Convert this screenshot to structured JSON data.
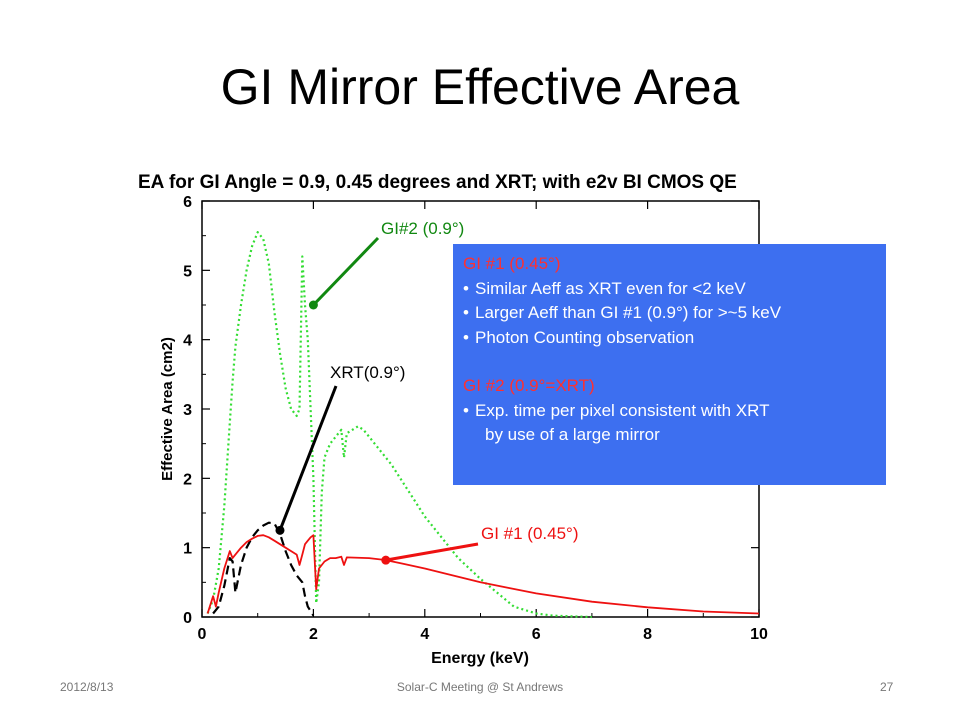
{
  "slide": {
    "title": "GI Mirror Effective Area",
    "footer_date": "2012/8/13",
    "footer_center": "Solar-C Meeting @ St Andrews",
    "page_number": "27"
  },
  "callouts": {
    "gi2": "GI#2 (0.9°)",
    "xrt": "XRT(0.9°)",
    "gi1": "GI #1 (0.45°)"
  },
  "infobox": {
    "heading1": "GI #1 (0.45°)",
    "bullets1": [
      "Similar Aeff as XRT even for <2 keV",
      "Larger Aeff than GI #1  (0.9°) for  >~5 keV",
      "Photon Counting observation"
    ],
    "heading2": "GI #2 (0.9°=XRT)",
    "bullet2": "Exp. time per pixel consistent with XRT",
    "bullet2_cont": "by use of a large mirror"
  },
  "colors": {
    "gi2_green": "#33dd33",
    "gi1_red": "#ee1111",
    "xrt_black": "#000000",
    "callout_green": "#118811",
    "box_blue": "#3d6ff0"
  },
  "chart_data": {
    "type": "line",
    "title": "EA for GI Angle = 0.9, 0.45 degrees and XRT; with e2v BI CMOS QE",
    "xlabel": "Energy (keV)",
    "ylabel": "Effective Area (cm2)",
    "xlim": [
      0,
      10
    ],
    "ylim": [
      0,
      6
    ],
    "xticks": [
      0,
      2,
      4,
      6,
      8,
      10
    ],
    "yticks": [
      0,
      1,
      2,
      3,
      4,
      5,
      6
    ],
    "grid": false,
    "series": [
      {
        "name": "GI#2 (0.9°)",
        "style": "dotted",
        "x": [
          0.1,
          0.2,
          0.3,
          0.4,
          0.5,
          0.55,
          0.6,
          0.7,
          0.8,
          0.9,
          1.0,
          1.1,
          1.2,
          1.3,
          1.4,
          1.5,
          1.6,
          1.7,
          1.75,
          1.8,
          1.85,
          1.9,
          1.95,
          2.0,
          2.05,
          2.1,
          2.15,
          2.2,
          2.3,
          2.4,
          2.5,
          2.55,
          2.6,
          2.7,
          2.8,
          2.9,
          3.0,
          3.2,
          3.4,
          3.6,
          3.8,
          4.0,
          4.3,
          4.6,
          5.0,
          5.3,
          5.6,
          6.0,
          6.3,
          6.6,
          7.0
        ],
        "y": [
          0.05,
          0.25,
          0.7,
          1.6,
          2.8,
          3.4,
          3.9,
          4.5,
          5.0,
          5.35,
          5.55,
          5.45,
          5.1,
          4.4,
          3.8,
          3.3,
          3.0,
          2.9,
          3.0,
          5.2,
          4.5,
          4.0,
          3.0,
          2.0,
          0.2,
          0.5,
          1.8,
          2.3,
          2.5,
          2.6,
          2.7,
          2.3,
          2.65,
          2.7,
          2.75,
          2.7,
          2.6,
          2.4,
          2.2,
          1.95,
          1.7,
          1.45,
          1.15,
          0.85,
          0.55,
          0.35,
          0.15,
          0.05,
          0.02,
          0.01,
          0.0
        ]
      },
      {
        "name": "XRT(0.9°)",
        "style": "dashed",
        "x": [
          0.2,
          0.3,
          0.4,
          0.5,
          0.55,
          0.6,
          0.7,
          0.8,
          0.9,
          1.0,
          1.1,
          1.2,
          1.3,
          1.4,
          1.5,
          1.6,
          1.7,
          1.8,
          1.85,
          1.9,
          2.0
        ],
        "y": [
          0.05,
          0.15,
          0.45,
          0.85,
          0.8,
          0.35,
          0.75,
          1.0,
          1.15,
          1.25,
          1.32,
          1.36,
          1.35,
          1.2,
          0.95,
          0.75,
          0.6,
          0.5,
          0.3,
          0.15,
          0.02
        ]
      },
      {
        "name": "GI #1 (0.45°)",
        "style": "solid",
        "x": [
          0.1,
          0.2,
          0.25,
          0.3,
          0.4,
          0.5,
          0.55,
          0.6,
          0.7,
          0.8,
          0.9,
          1.0,
          1.1,
          1.2,
          1.3,
          1.4,
          1.5,
          1.6,
          1.7,
          1.75,
          1.8,
          1.85,
          1.9,
          1.95,
          2.0,
          2.05,
          2.1,
          2.2,
          2.3,
          2.4,
          2.5,
          2.55,
          2.6,
          3.0,
          3.3,
          3.6,
          4.0,
          4.5,
          5.0,
          5.5,
          6.0,
          7.0,
          8.0,
          9.0,
          10.0
        ],
        "y": [
          0.05,
          0.3,
          0.15,
          0.35,
          0.7,
          0.95,
          0.85,
          0.9,
          1.0,
          1.08,
          1.13,
          1.17,
          1.18,
          1.15,
          1.1,
          1.05,
          1.0,
          0.95,
          0.9,
          0.75,
          0.9,
          1.05,
          1.1,
          1.15,
          1.18,
          0.4,
          0.7,
          0.8,
          0.85,
          0.85,
          0.87,
          0.75,
          0.86,
          0.85,
          0.82,
          0.77,
          0.7,
          0.6,
          0.5,
          0.42,
          0.34,
          0.22,
          0.14,
          0.08,
          0.05
        ]
      }
    ],
    "annotation_points": {
      "gi2": [
        2.0,
        4.5
      ],
      "xrt": [
        1.4,
        1.25
      ],
      "gi1": [
        3.3,
        0.82
      ]
    }
  }
}
